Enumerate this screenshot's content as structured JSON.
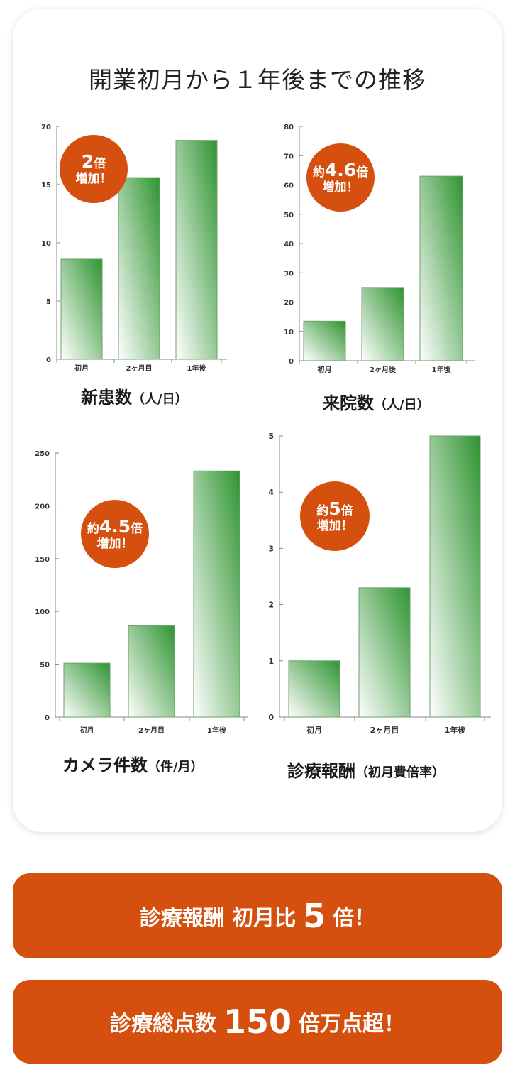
{
  "title": "開業初月から１年後までの推移",
  "colors": {
    "accent": "#d5500e",
    "bar_top": "#2f9431",
    "bar_bottom": "#ffffff"
  },
  "chart_data": [
    {
      "type": "bar",
      "title": "新患数",
      "unit": "（人/日）",
      "categories": [
        "初月",
        "2ヶ月目",
        "1年後"
      ],
      "values": [
        8.6,
        15.6,
        18.8
      ],
      "ylim": [
        0,
        20
      ],
      "yticks": [
        "0",
        "5",
        "10",
        "15",
        "20"
      ],
      "badge": {
        "prefix": "",
        "number": "2",
        "suffix": "倍",
        "line2": "増加！"
      }
    },
    {
      "type": "bar",
      "title": "来院数",
      "unit": "（人/日）",
      "categories": [
        "初月",
        "2ヶ月後",
        "1年後"
      ],
      "values": [
        13.5,
        25,
        63
      ],
      "ylim": [
        0,
        80
      ],
      "yticks": [
        "0",
        "10",
        "20",
        "30",
        "40",
        "50",
        "60",
        "70",
        "80"
      ],
      "badge": {
        "prefix": "約",
        "number": "4.6",
        "suffix": "倍",
        "line2": "増加！"
      }
    },
    {
      "type": "bar",
      "title": "カメラ件数",
      "unit": "（件/月）",
      "categories": [
        "初月",
        "2ヶ月目",
        "1年後"
      ],
      "values": [
        51,
        87,
        233
      ],
      "ylim": [
        0,
        250
      ],
      "yticks": [
        "0",
        "50",
        "100",
        "150",
        "200",
        "250"
      ],
      "badge": {
        "prefix": "約",
        "number": "4.5",
        "suffix": "倍",
        "line2": "増加！"
      }
    },
    {
      "type": "bar",
      "title": "診療報酬",
      "unit": "（初月費倍率）",
      "categories": [
        "初月",
        "2ヶ月目",
        "1年後"
      ],
      "values": [
        1,
        2.3,
        5
      ],
      "ylim": [
        0,
        5
      ],
      "yticks": [
        "0",
        "1",
        "2",
        "3",
        "4",
        "5"
      ],
      "badge": {
        "prefix": "約",
        "number": "5",
        "suffix": "倍",
        "line2": "増加！"
      }
    }
  ],
  "banners": [
    {
      "pre": "診療報酬 初月比",
      "number": "5",
      "post": "倍！"
    },
    {
      "pre": "診療総点数",
      "number": "150",
      "post": "倍万点超！"
    }
  ]
}
